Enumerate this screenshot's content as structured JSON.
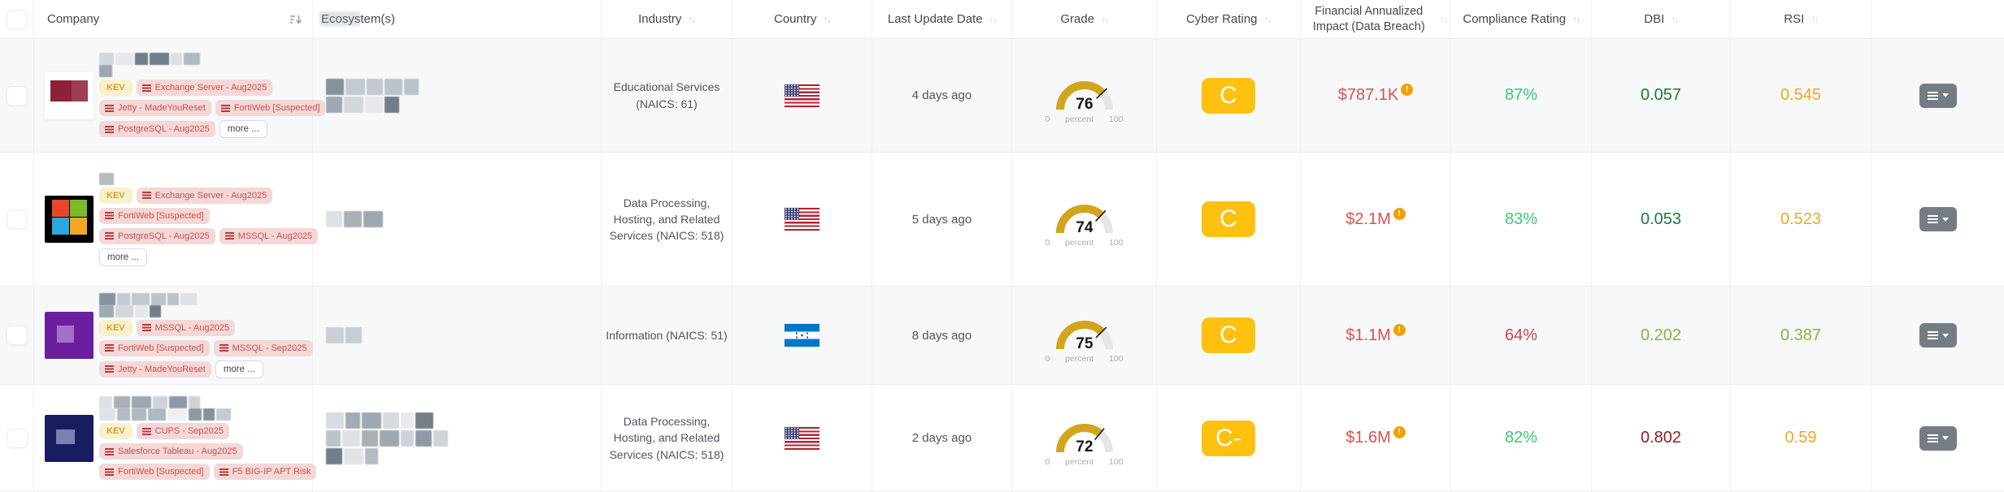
{
  "table": {
    "header": {
      "company": "Company",
      "ecosystem": "Ecosystem(s)",
      "industry": "Industry",
      "country": "Country",
      "last_update": "Last Update Date",
      "grade": "Grade",
      "cyber_rating": "Cyber Rating",
      "financial_impact": "Financial Annualized Impact (Data Breach)",
      "compliance": "Compliance Rating",
      "dbi": "DBI",
      "rsi": "RSI"
    },
    "gauge": {
      "min": "0",
      "unit": "percent",
      "max": "100"
    },
    "colors": {
      "grade_arc": "#D2A51D",
      "grade_track": "#E4E6E8",
      "rating_badge": "#FFC110",
      "financial": "#D9534F",
      "kev_bg": "#FBF0CE",
      "kev_text": "#C9A237",
      "tag_bg": "#F4D8D8",
      "tag_text": "#C94F4F",
      "green": "#3BC878",
      "dark_green": "#1B7B3D",
      "light_green": "#7FB73F",
      "amber": "#F2A71B",
      "red": "#C8444E",
      "dark_red": "#8F1D1B"
    },
    "rows": [
      {
        "company_chips": [
          [
            "KEV",
            "Exchange Server - Aug2025"
          ],
          [
            "Jetty - MadeYouReset",
            "FortiWeb [Suspected]"
          ],
          [
            "PostgreSQL - Aug2025",
            "more ..."
          ]
        ],
        "industry": "Educational Services (NAICS: 61)",
        "country": "United States",
        "last_update": "4 days ago",
        "grade": 76,
        "cyber_rating": "C",
        "financial_impact": "$787.1K",
        "compliance": {
          "text": "87%",
          "color": "#3BC878"
        },
        "dbi": {
          "text": "0.057",
          "color": "#1B7B3D"
        },
        "rsi": {
          "text": "0.545",
          "color": "#F2A71B"
        }
      },
      {
        "company_chips": [
          [
            "KEV",
            "Exchange Server - Aug2025"
          ],
          [
            "FortiWeb [Suspected]"
          ],
          [
            "PostgreSQL - Aug2025",
            "MSSQL - Aug2025"
          ],
          [
            "more ..."
          ]
        ],
        "industry": "Data Processing, Hosting, and Related Services (NAICS: 518)",
        "country": "United States",
        "last_update": "5 days ago",
        "grade": 74,
        "cyber_rating": "C",
        "financial_impact": "$2.1M",
        "compliance": {
          "text": "83%",
          "color": "#3BC878"
        },
        "dbi": {
          "text": "0.053",
          "color": "#1B7B3D"
        },
        "rsi": {
          "text": "0.523",
          "color": "#F2A71B"
        }
      },
      {
        "company_chips": [
          [
            "KEV",
            "MSSQL - Aug2025"
          ],
          [
            "FortiWeb [Suspected]",
            "MSSQL - Sep2025"
          ],
          [
            "Jetty - MadeYouReset",
            "more ..."
          ]
        ],
        "industry": "Information (NAICS: 51)",
        "country": "Honduras",
        "last_update": "8 days ago",
        "grade": 75,
        "cyber_rating": "C",
        "financial_impact": "$1.1M",
        "compliance": {
          "text": "64%",
          "color": "#C8444E"
        },
        "dbi": {
          "text": "0.202",
          "color": "#7FB73F"
        },
        "rsi": {
          "text": "0.387",
          "color": "#7FB73F"
        }
      },
      {
        "company_chips": [
          [
            "KEV",
            "CUPS - Sep2025"
          ],
          [
            "Salesforce Tableau - Aug2025"
          ],
          [
            "FortiWeb [Suspected]",
            "F5 BIG-IP APT Risk"
          ]
        ],
        "industry": "Data Processing, Hosting, and Related Services (NAICS: 518)",
        "country": "United States",
        "last_update": "2 days ago",
        "grade": 72,
        "cyber_rating": "C-",
        "financial_impact": "$1.6M",
        "compliance": {
          "text": "82%",
          "color": "#3BC878"
        },
        "dbi": {
          "text": "0.802",
          "color": "#8F1D1B"
        },
        "rsi": {
          "text": "0.59",
          "color": "#F2A71B"
        }
      }
    ]
  }
}
